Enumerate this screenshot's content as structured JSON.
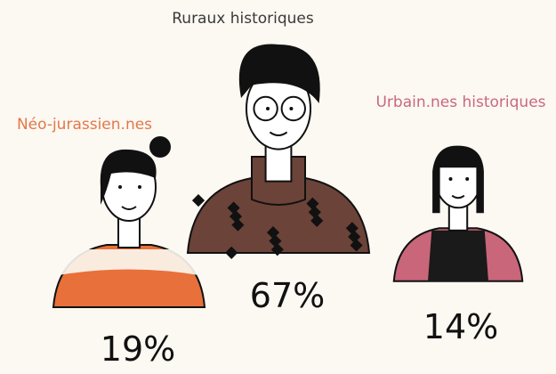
{
  "chart_data": {
    "type": "pictorial",
    "categories": [
      "Néo-jurassien.nes",
      "Ruraux historiques",
      "Urbain.nes historiques"
    ],
    "values": [
      19,
      67,
      14
    ],
    "value_labels": [
      "19%",
      "67%",
      "14%"
    ],
    "colors": [
      "#e2784a",
      "#3a3a3a",
      "#c9697b"
    ]
  }
}
